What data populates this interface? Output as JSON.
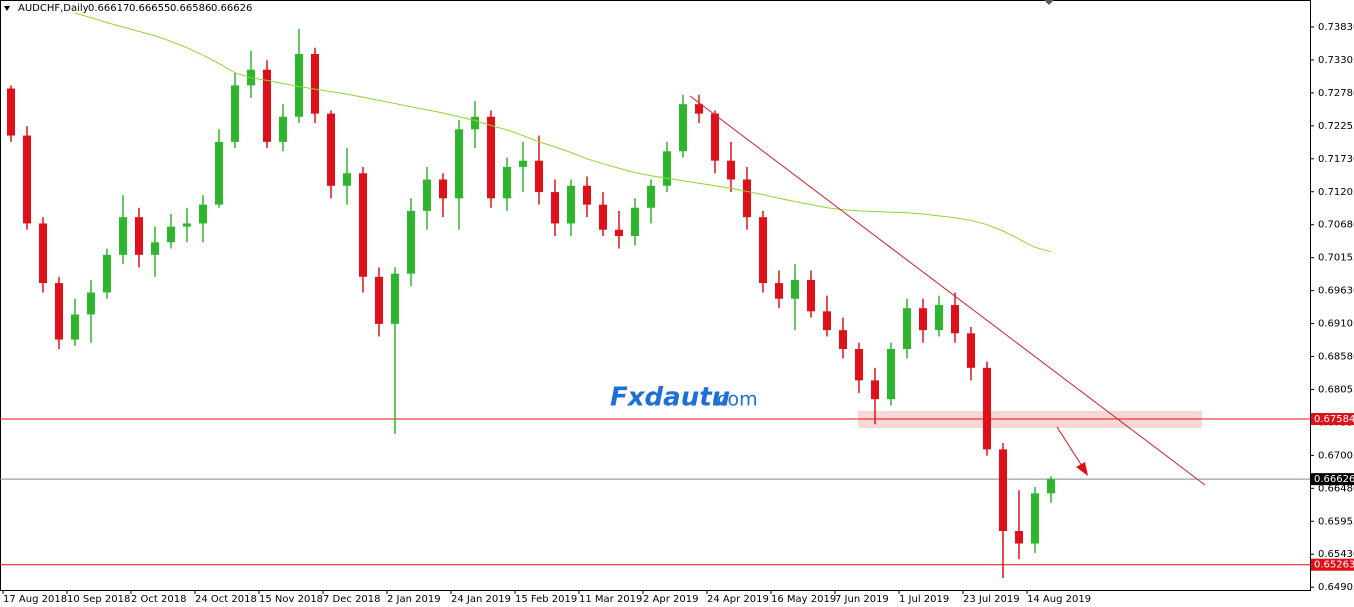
{
  "chart_data": {
    "type": "candlestick",
    "header": {
      "symbol": "AUDCHF,Daily",
      "ohlc": [
        0.66617,
        0.66655,
        0.66586,
        0.66626
      ]
    },
    "watermark": {
      "brand": "Fxdautu",
      "suffix": ".com"
    },
    "x_labels": [
      "17 Aug 2018",
      "10 Sep 2018",
      "2 Oct 2018",
      "24 Oct 2018",
      "15 Nov 2018",
      "7 Dec 2018",
      "2 Jan 2019",
      "24 Jan 2019",
      "15 Feb 2019",
      "11 Mar 2019",
      "2 Apr 2019",
      "24 Apr 2019",
      "16 May 2019",
      "7 Jun 2019",
      "1 Jul 2019",
      "23 Jul 2019",
      "14 Aug 2019"
    ],
    "ylim": [
      0.6486,
      0.7426
    ],
    "yticks": [
      {
        "value": 0.7383,
        "label": "0.73830"
      },
      {
        "value": 0.73305,
        "label": "0.73305"
      },
      {
        "value": 0.7278,
        "label": "0.72780"
      },
      {
        "value": 0.72255,
        "label": "0.72255"
      },
      {
        "value": 0.7173,
        "label": "0.71730"
      },
      {
        "value": 0.71205,
        "label": "0.71205"
      },
      {
        "value": 0.7068,
        "label": "0.70680"
      },
      {
        "value": 0.70155,
        "label": "0.70155"
      },
      {
        "value": 0.6963,
        "label": "0.69630"
      },
      {
        "value": 0.69105,
        "label": "0.69105"
      },
      {
        "value": 0.6858,
        "label": "0.68580"
      },
      {
        "value": 0.68055,
        "label": "0.68055"
      },
      {
        "value": 0.6753,
        "label": "0.67530"
      },
      {
        "value": 0.67005,
        "label": "0.67005"
      },
      {
        "value": 0.6648,
        "label": "0.66480"
      },
      {
        "value": 0.65955,
        "label": "0.65955"
      },
      {
        "value": 0.6543,
        "label": "0.65430"
      },
      {
        "value": 0.64905,
        "label": "0.64905"
      }
    ],
    "colors": {
      "up": "#2fb62f",
      "down": "#e0101a",
      "ma": "#8fd62c"
    },
    "candles": {
      "open": [
        0.7285,
        0.721,
        0.707,
        0.6975,
        0.6885,
        0.6925,
        0.696,
        0.702,
        0.708,
        0.702,
        0.704,
        0.7065,
        0.707,
        0.71,
        0.72,
        0.729,
        0.7315,
        0.72,
        0.724,
        0.734,
        0.7245,
        0.713,
        0.715,
        0.6985,
        0.691,
        0.699,
        0.709,
        0.714,
        0.711,
        0.722,
        0.724,
        0.711,
        0.716,
        0.717,
        0.712,
        0.707,
        0.713,
        0.71,
        0.706,
        0.705,
        0.7095,
        0.713,
        0.7185,
        0.726,
        0.7245,
        0.717,
        0.714,
        0.708,
        0.6975,
        0.695,
        0.698,
        0.693,
        0.69,
        0.687,
        0.682,
        0.679,
        0.687,
        0.6935,
        0.69,
        0.694,
        0.6895,
        0.684,
        0.671,
        0.658,
        0.656,
        0.664
      ],
      "high": [
        0.729,
        0.7225,
        0.708,
        0.6985,
        0.695,
        0.698,
        0.703,
        0.7115,
        0.7095,
        0.7065,
        0.7085,
        0.7095,
        0.7115,
        0.722,
        0.731,
        0.7345,
        0.733,
        0.726,
        0.738,
        0.735,
        0.725,
        0.719,
        0.716,
        0.7,
        0.7,
        0.711,
        0.716,
        0.715,
        0.7235,
        0.7265,
        0.725,
        0.7175,
        0.72,
        0.721,
        0.714,
        0.714,
        0.7145,
        0.712,
        0.709,
        0.711,
        0.714,
        0.72,
        0.7275,
        0.7275,
        0.725,
        0.72,
        0.716,
        0.709,
        0.6995,
        0.7005,
        0.6995,
        0.6955,
        0.692,
        0.688,
        0.684,
        0.688,
        0.695,
        0.695,
        0.6955,
        0.696,
        0.6905,
        0.685,
        0.672,
        0.6645,
        0.665,
        0.6667
      ],
      "low": [
        0.72,
        0.706,
        0.696,
        0.687,
        0.6875,
        0.688,
        0.695,
        0.7005,
        0.7,
        0.6985,
        0.703,
        0.704,
        0.704,
        0.7095,
        0.719,
        0.727,
        0.719,
        0.7185,
        0.723,
        0.723,
        0.711,
        0.71,
        0.696,
        0.689,
        0.6735,
        0.697,
        0.706,
        0.708,
        0.706,
        0.719,
        0.7095,
        0.709,
        0.712,
        0.71,
        0.705,
        0.705,
        0.708,
        0.705,
        0.703,
        0.7035,
        0.707,
        0.712,
        0.7175,
        0.723,
        0.715,
        0.712,
        0.706,
        0.696,
        0.6935,
        0.69,
        0.692,
        0.689,
        0.6855,
        0.68,
        0.675,
        0.678,
        0.6855,
        0.688,
        0.689,
        0.688,
        0.682,
        0.67,
        0.6505,
        0.6535,
        0.6545,
        0.6625
      ],
      "close": [
        0.721,
        0.707,
        0.6975,
        0.6885,
        0.6925,
        0.696,
        0.702,
        0.708,
        0.702,
        0.704,
        0.7065,
        0.707,
        0.71,
        0.72,
        0.729,
        0.7315,
        0.72,
        0.724,
        0.734,
        0.7245,
        0.713,
        0.715,
        0.6985,
        0.691,
        0.699,
        0.709,
        0.714,
        0.711,
        0.722,
        0.724,
        0.711,
        0.716,
        0.717,
        0.712,
        0.707,
        0.713,
        0.71,
        0.706,
        0.705,
        0.7095,
        0.713,
        0.7185,
        0.726,
        0.7245,
        0.717,
        0.714,
        0.708,
        0.6975,
        0.695,
        0.698,
        0.693,
        0.69,
        0.687,
        0.682,
        0.679,
        0.687,
        0.6935,
        0.69,
        0.694,
        0.6895,
        0.684,
        0.671,
        0.658,
        0.656,
        0.664,
        0.6663
      ]
    },
    "ma": [
      null,
      null,
      null,
      null,
      0.7405,
      0.7398,
      0.739,
      0.7383,
      0.7376,
      0.7369,
      0.736,
      0.735,
      0.7338,
      0.7325,
      0.731,
      0.7302,
      0.7298,
      0.7293,
      0.7288,
      0.7284,
      0.728,
      0.7276,
      0.7271,
      0.7266,
      0.7261,
      0.7256,
      0.7251,
      0.7246,
      0.724,
      0.7234,
      0.7226,
      0.7219,
      0.721,
      0.72,
      0.7192,
      0.7183,
      0.7173,
      0.7165,
      0.7158,
      0.7151,
      0.7146,
      0.7142,
      0.7138,
      0.7134,
      0.713,
      0.7126,
      0.7121,
      0.7116,
      0.711,
      0.7105,
      0.71,
      0.7095,
      0.7092,
      0.709,
      0.7089,
      0.7088,
      0.7087,
      0.7085,
      0.7082,
      0.7079,
      0.7075,
      0.7068,
      0.7058,
      0.7045,
      0.7032,
      0.7025
    ],
    "levels": [
      {
        "value": 0.67584,
        "color": "#e0101a"
      },
      {
        "value": 0.66626,
        "color": "#000000"
      },
      {
        "value": 0.65263,
        "color": "#e0101a"
      }
    ]
  }
}
